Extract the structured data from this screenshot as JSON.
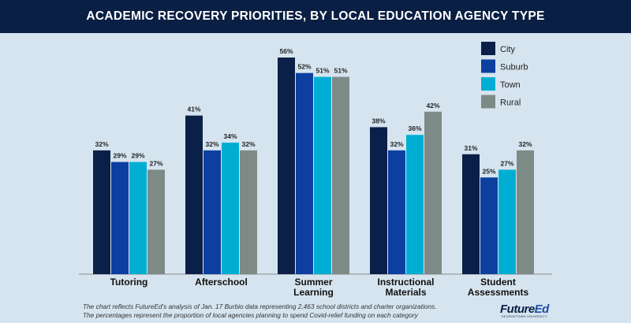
{
  "chart_data": {
    "type": "bar",
    "title": "ACADEMIC RECOVERY PRIORITIES, BY LOCAL EDUCATION AGENCY TYPE",
    "categories": [
      "Tutoring",
      "Afterschool",
      "Summer Learning",
      "Instructional Materials",
      "Student Assessments"
    ],
    "series": [
      {
        "name": "City",
        "color": "#0b2048",
        "values": [
          32,
          41,
          56,
          38,
          31
        ]
      },
      {
        "name": "Suburb",
        "color": "#0d3fa0",
        "values": [
          29,
          32,
          52,
          32,
          25
        ]
      },
      {
        "name": "Town",
        "color": "#00aed3",
        "values": [
          29,
          34,
          51,
          36,
          27
        ]
      },
      {
        "name": "Rural",
        "color": "#7e8a86",
        "values": [
          27,
          32,
          51,
          42,
          32
        ]
      }
    ],
    "value_format": "percent",
    "legend_position": "top-right",
    "grid": false,
    "ylim": [
      0,
      56
    ]
  },
  "footnote": {
    "line1": "The chart reflects FutureEd's analysis of Jan. 17 Burbio data representing 2,463 school districts and charter organizations.",
    "line2": "The percentages represent the proportion of local agencies planning to spend Covid-relief funding on each category"
  },
  "logo": {
    "text_a": "Future",
    "text_b": "Ed",
    "sub": "GEORGETOWN UNIVERSITY"
  }
}
